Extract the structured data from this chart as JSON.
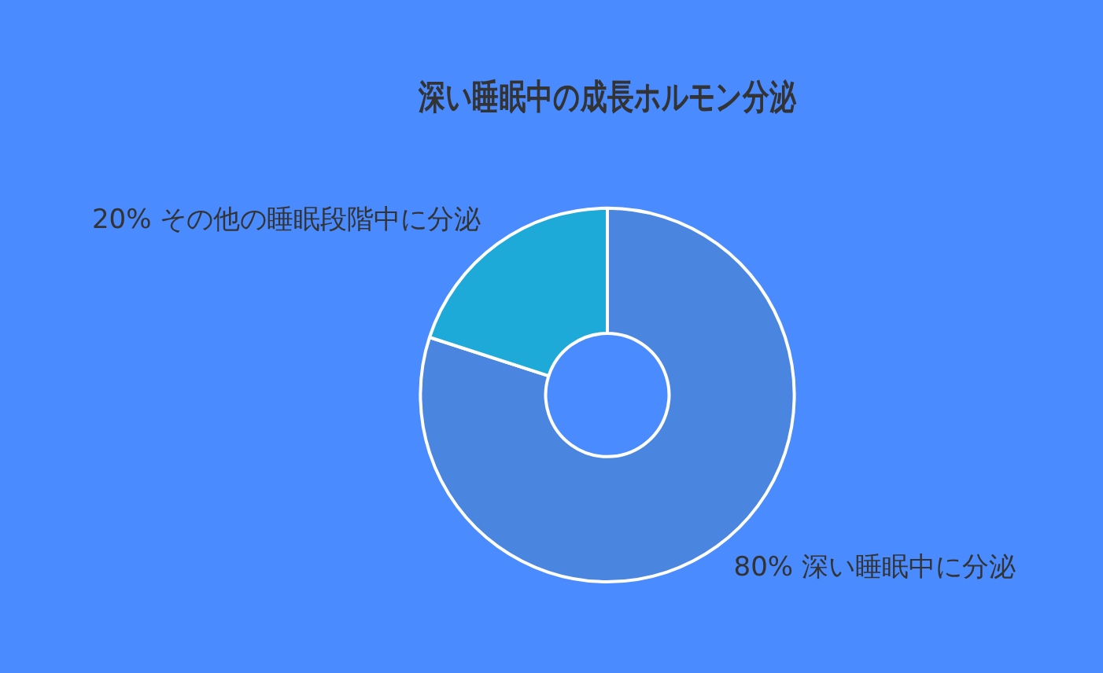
{
  "chart_data": {
    "type": "donut",
    "title": "深い睡眠中の成長ホルモン分泌",
    "categories": [
      "深い睡眠中に分泌",
      "その他の睡眠段階中に分泌"
    ],
    "values": [
      80,
      20
    ],
    "colors": [
      "#4a86e0",
      "#1eaad8"
    ],
    "value_labels": [
      "80%",
      "20%"
    ],
    "legend": false
  }
}
